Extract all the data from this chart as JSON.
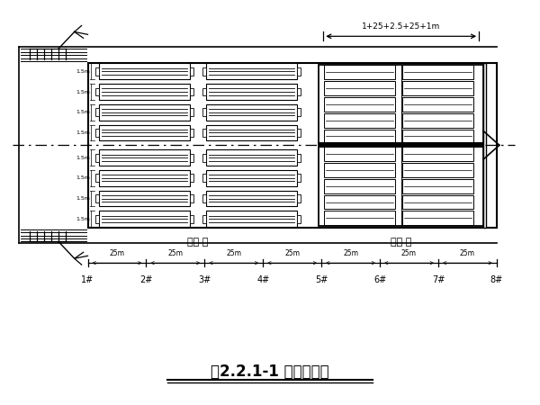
{
  "title": "图2.2.1-1 预制场布置",
  "bg_color": "#ffffff",
  "line_color": "#000000",
  "dim_label_top": "1+25+2.5+25+1m",
  "dim_labels_bottom": [
    "25m",
    "25m",
    "25m",
    "25m",
    "25m",
    "25m",
    "25m"
  ],
  "station_labels": [
    "1#",
    "2#",
    "3#",
    "4#",
    "5#",
    "6#",
    "7#",
    "8#"
  ],
  "zone_label_left": "预制 区",
  "zone_label_right": "存梁 区",
  "bed_dim_labels": [
    "1.5m",
    "1.5m",
    "1.5m",
    "1.5m",
    "1.5m",
    "1.5m",
    "1.5m"
  ]
}
